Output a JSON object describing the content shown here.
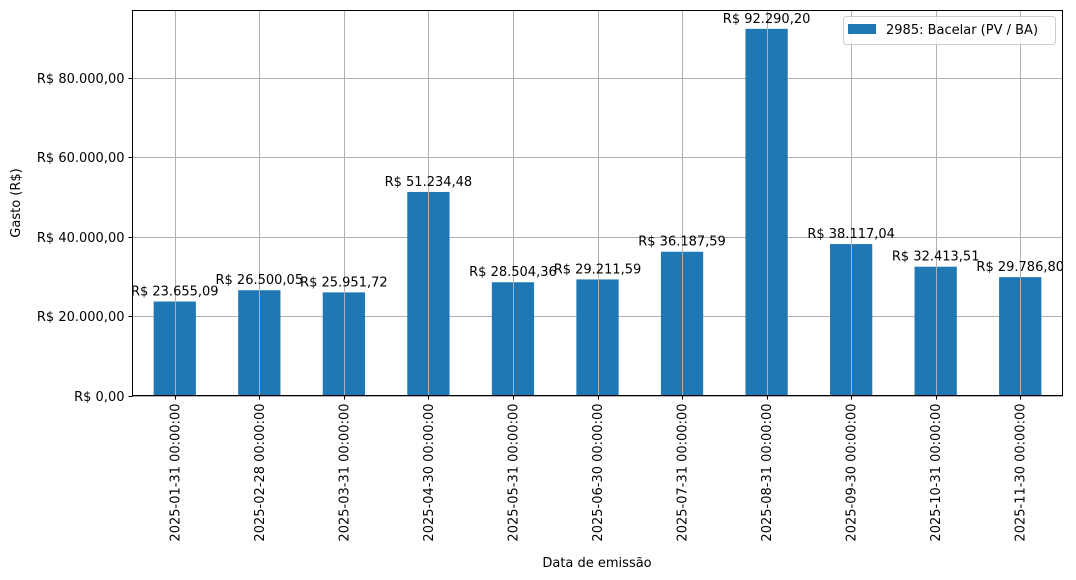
{
  "chart_data": {
    "type": "bar",
    "title": "",
    "xlabel": "Data de emissão",
    "ylabel": "Gasto (R$)",
    "ylim": [
      0,
      96900
    ],
    "grid": true,
    "legend_position": "upper right",
    "bar_color": "#1f77b4",
    "categories": [
      "2025-01-31 00:00:00",
      "2025-02-28 00:00:00",
      "2025-03-31 00:00:00",
      "2025-04-30 00:00:00",
      "2025-05-31 00:00:00",
      "2025-06-30 00:00:00",
      "2025-07-31 00:00:00",
      "2025-08-31 00:00:00",
      "2025-09-30 00:00:00",
      "2025-10-31 00:00:00",
      "2025-11-30 00:00:00"
    ],
    "series": [
      {
        "name": "2985: Bacelar (PV / BA)",
        "values": [
          23655.09,
          26500.05,
          25951.72,
          51234.48,
          28504.36,
          29211.59,
          36187.59,
          92290.2,
          38117.04,
          32413.51,
          29786.8
        ],
        "labels": [
          "R$ 23.655,09",
          "R$ 26.500,05",
          "R$ 25.951,72",
          "R$ 51.234,48",
          "R$ 28.504,36",
          "R$ 29.211,59",
          "R$ 36.187,59",
          "R$ 92.290,20",
          "R$ 38.117,04",
          "R$ 32.413,51",
          "R$ 29.786,80"
        ]
      }
    ],
    "yticks": [
      0,
      20000,
      40000,
      60000,
      80000
    ],
    "ytick_labels": [
      "R$ 0,00",
      "R$ 20.000,00",
      "R$ 40.000,00",
      "R$ 60.000,00",
      "R$ 80.000,00"
    ]
  }
}
